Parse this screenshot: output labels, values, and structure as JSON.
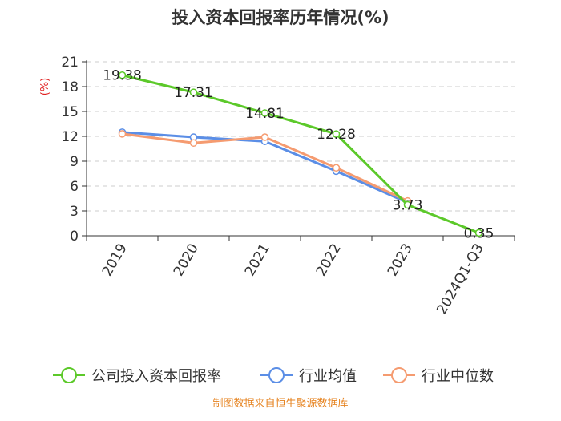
{
  "chart_data": {
    "type": "line",
    "title": "投入资本回报率历年情况(%)",
    "ylabel": "(%)",
    "categories": [
      "2019",
      "2020",
      "2021",
      "2022",
      "2023",
      "2024Q1-Q3"
    ],
    "ylim": [
      0,
      21
    ],
    "yticks": [
      0,
      3,
      6,
      9,
      12,
      15,
      18,
      21
    ],
    "grid": true,
    "legend_position": "bottom",
    "series": [
      {
        "name": "公司投入资本回报率",
        "color": "#5cc92a",
        "values": [
          19.38,
          17.31,
          14.81,
          12.28,
          3.73,
          0.35
        ],
        "labels": [
          "19.38",
          "17.31",
          "14.81",
          "12.28",
          "3.73",
          "0.35"
        ]
      },
      {
        "name": "行业均值",
        "color": "#5b8ee6",
        "values": [
          12.5,
          11.9,
          11.4,
          7.8,
          4.0,
          null
        ]
      },
      {
        "name": "行业中位数",
        "color": "#f59b70",
        "values": [
          12.3,
          11.2,
          11.9,
          8.2,
          4.2,
          null
        ]
      }
    ]
  },
  "footer": "制图数据来自恒生聚源数据库"
}
